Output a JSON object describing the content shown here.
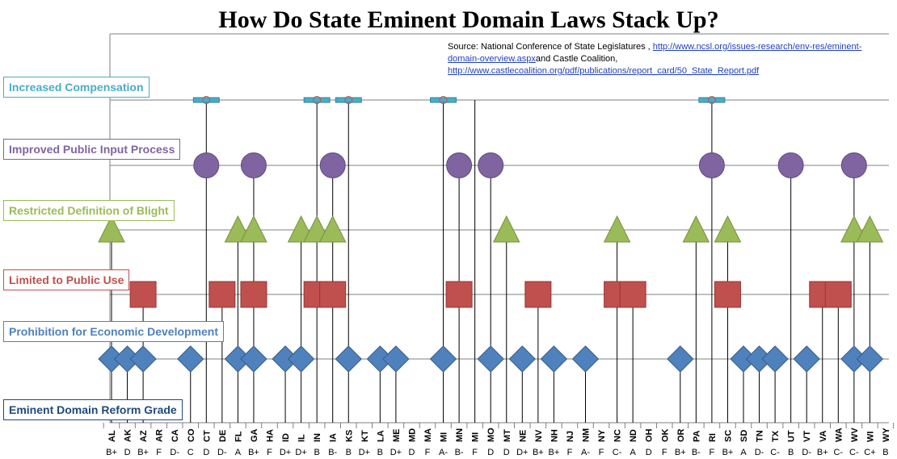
{
  "chart_data": {
    "type": "scatter",
    "title": "How Do State Eminent Domain Laws Stack Up?",
    "source": {
      "prefix": "Source: National Conference of State Legislatures ,",
      "link1": "http://www.ncsl.org/issues-research/env-res/eminent-domain-overview.aspx",
      "middle": "and  Castle Coalition,",
      "link2": "http://www.castlecoalition.org/pdf/publications/report_card/50_State_Report.pdf"
    },
    "states": [
      "AL",
      "AK",
      "AZ",
      "AR",
      "CA",
      "CO",
      "CT",
      "DE",
      "FL",
      "GA",
      "HA",
      "ID",
      "IL",
      "IN",
      "IA",
      "KS",
      "KT",
      "LA",
      "ME",
      "MD",
      "MA",
      "MI",
      "MN",
      "MI",
      "MO",
      "MT",
      "NE",
      "NV",
      "NH",
      "NJ",
      "NM",
      "NY",
      "NC",
      "ND",
      "OH",
      "OK",
      "OR",
      "PA",
      "RI",
      "SC",
      "SD",
      "TN",
      "TX",
      "UT",
      "VT",
      "VA",
      "WA",
      "WV",
      "WI",
      "WY"
    ],
    "grades": [
      "B+",
      "D",
      "B+",
      "F",
      "D-",
      "C",
      "D",
      "D-",
      "A",
      "B+",
      "F",
      "D+",
      "D+",
      "B",
      "B-",
      "B",
      "D+",
      "B",
      "D+",
      "D",
      "F",
      "A-",
      "B-",
      "F",
      "D",
      "D",
      "D+",
      "B+",
      "B+",
      "F",
      "A-",
      "F",
      "C-",
      "A",
      "D",
      "F",
      "B+",
      "B-",
      "F",
      "B+",
      "A",
      "D-",
      "C-",
      "B",
      "D-",
      "B+",
      "C-",
      "C-",
      "C+",
      "B"
    ],
    "categories": [
      {
        "key": "compensation",
        "name": "Increased Compensation",
        "marker": "bar",
        "color": "#4bacc6",
        "states": [
          "CT",
          "IN",
          "KS",
          "MI",
          "RI"
        ]
      },
      {
        "key": "public_input",
        "name": "Improved Public Input Process",
        "marker": "circle",
        "color": "#8064a2",
        "states": [
          "CT",
          "GA",
          "IA",
          "MN",
          "MO",
          "RI",
          "UT",
          "WV"
        ]
      },
      {
        "key": "blight",
        "name": "Restricted Definition of Blight",
        "marker": "triangle",
        "color": "#9bbb59",
        "states": [
          "AL",
          "FL",
          "GA",
          "IL",
          "IN",
          "IA",
          "MT",
          "NC",
          "PA",
          "SC",
          "WV",
          "WI"
        ]
      },
      {
        "key": "public_use",
        "name": "Limited to Public Use",
        "marker": "square",
        "color": "#c0504d",
        "states": [
          "AZ",
          "DE",
          "GA",
          "IN",
          "IA",
          "MN",
          "NV",
          "NC",
          "ND",
          "SC",
          "VA",
          "WA"
        ]
      },
      {
        "key": "economic",
        "name": "Prohibition for Economic Development",
        "marker": "diamond",
        "color": "#4f81bd",
        "states": [
          "AL",
          "AK",
          "AZ",
          "CO",
          "FL",
          "GA",
          "ID",
          "IL",
          "KS",
          "LA",
          "ME",
          "MI",
          "MO",
          "NE",
          "NH",
          "NM",
          "OR",
          "SD",
          "TN",
          "TX",
          "VT",
          "WV",
          "WI"
        ]
      },
      {
        "key": "grade",
        "name": "Eminent Domain Reform Grade",
        "marker": "none",
        "color": "#1f497d",
        "states": []
      }
    ]
  }
}
